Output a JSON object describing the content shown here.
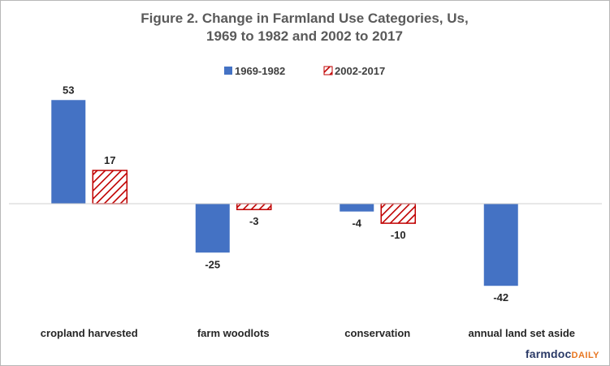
{
  "chart_data": {
    "type": "bar",
    "title": [
      "Figure 2.  Change in Farmland Use Categories, Us,",
      "1969 to 1982 and 2002 to 2017"
    ],
    "categories": [
      "cropland harvested",
      "farm woodlots",
      "conservation",
      "annual land set aside"
    ],
    "series": [
      {
        "name": "1969-1982",
        "values": [
          53,
          -25,
          -4,
          -42
        ],
        "color": "#4472c4",
        "pattern": "solid"
      },
      {
        "name": "2002-2017",
        "values": [
          17,
          -3,
          -10,
          null
        ],
        "color": "#c00000",
        "pattern": "diagonal-hatch"
      }
    ],
    "xlabel": "",
    "ylabel": "",
    "ylim": [
      -50,
      60
    ],
    "grid": false,
    "legend": "top-center"
  },
  "branding": {
    "part1": "farmdoc",
    "part2": "DAILY"
  }
}
